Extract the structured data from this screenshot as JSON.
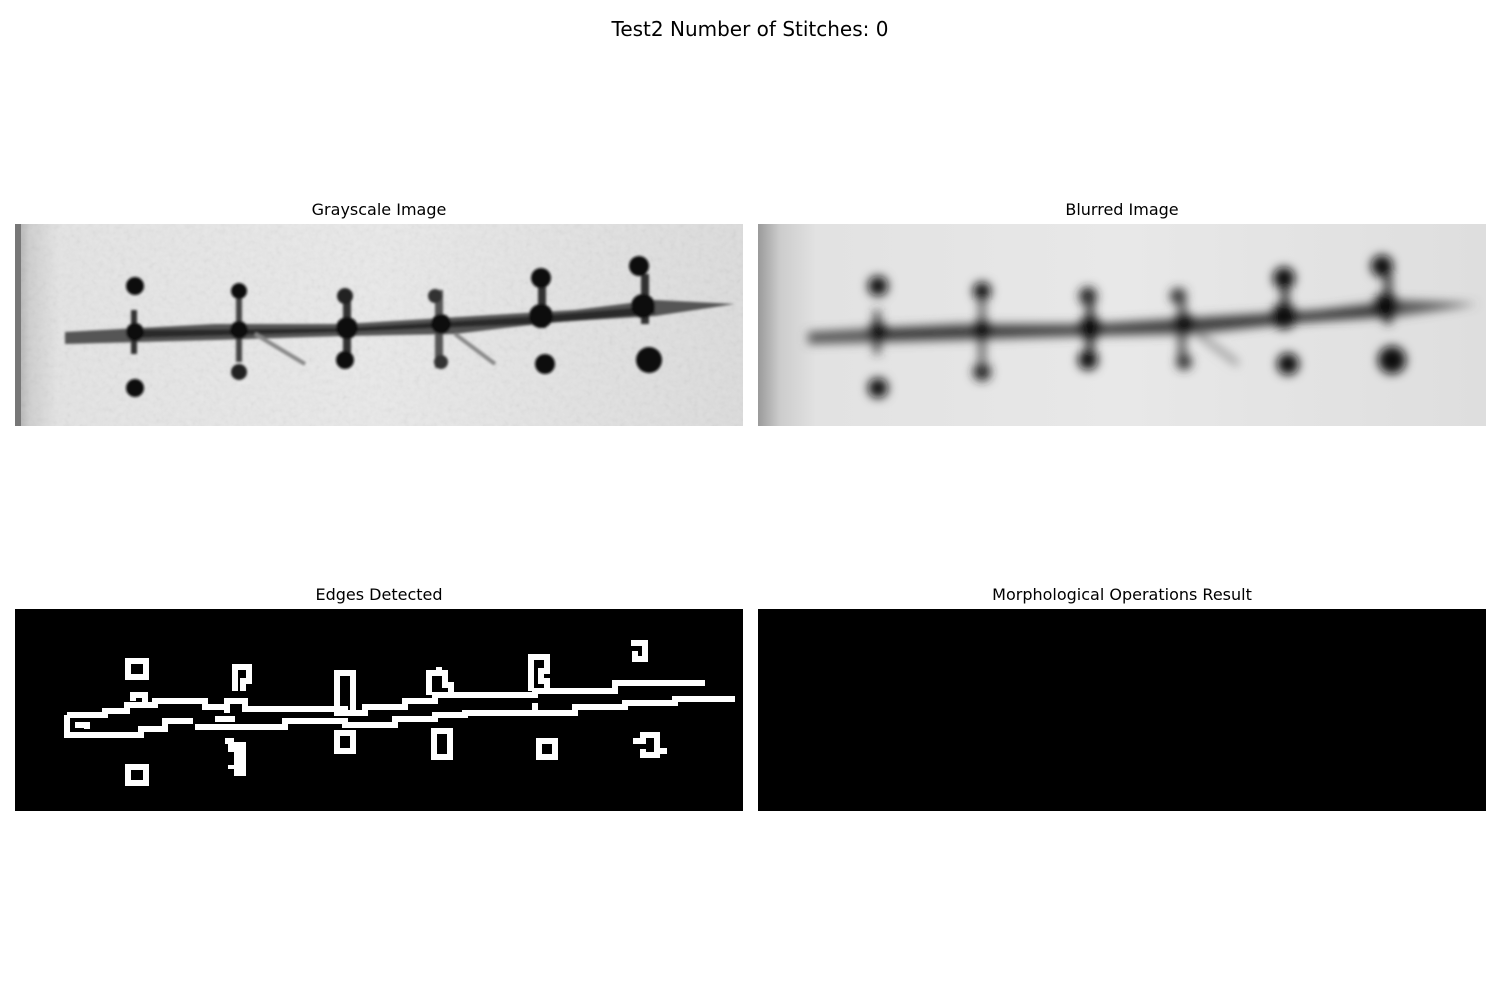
{
  "figure": {
    "title": "Test2 Number of Stitches: 0"
  },
  "panels": {
    "grayscale": {
      "title": "Grayscale Image"
    },
    "blurred": {
      "title": "Blurred Image"
    },
    "edges": {
      "title": "Edges Detected"
    },
    "morphology": {
      "title": "Morphological Operations Result"
    }
  },
  "colors": {
    "background": "#ffffff",
    "edge_line": "#ffffff",
    "edge_background": "#000000",
    "stitch_dark": "#1a1a1a",
    "skin_light": "#e6e6e6"
  }
}
